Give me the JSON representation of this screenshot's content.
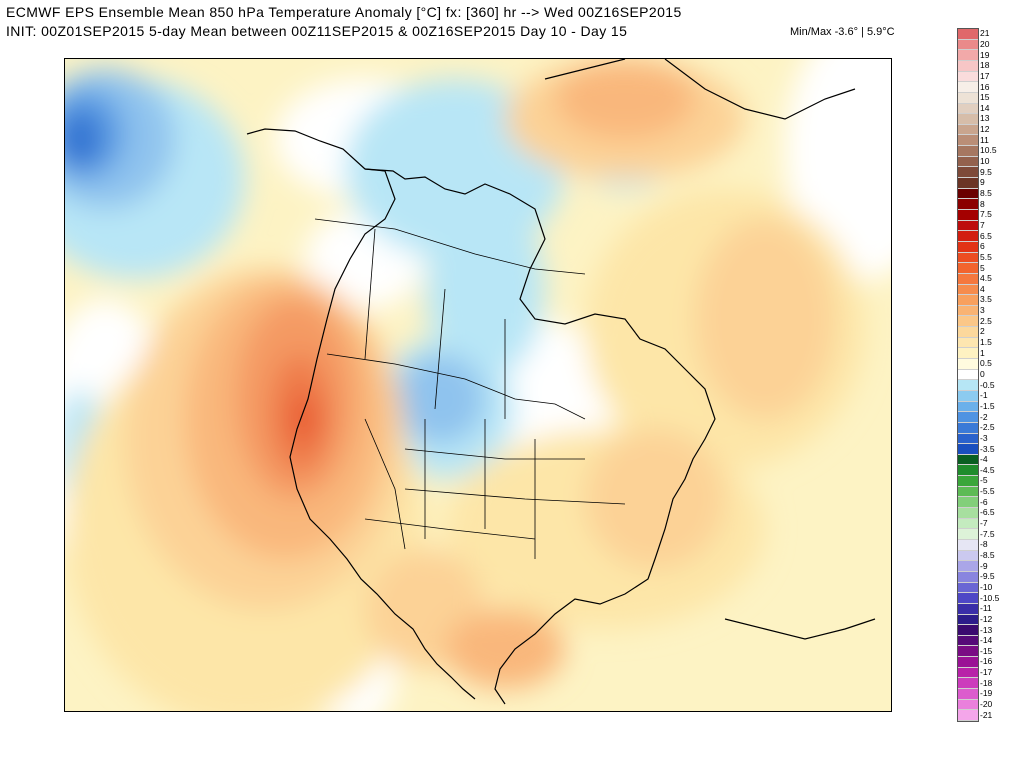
{
  "header": {
    "line1": "ECMWF EPS Ensemble Mean 850 hPa Temperature Anomaly [°C] fx: [360] hr --> Wed 00Z16SEP2015",
    "line2": "INIT: 00Z01SEP2015 5-day Mean between 00Z11SEP2015 & 00Z16SEP2015    Day 10 - Day 15",
    "minmax": "Min/Max -3.6° |  5.9°C"
  },
  "map": {
    "region": "North America",
    "land_outline_color": "#000000",
    "lake_color": "#6e6e6e",
    "anomaly_colors": {
      "neg_3": "#2f6fd0",
      "neg_2": "#5a9be3",
      "neg_1": "#8fc3ee",
      "neg_05": "#b8e6f6",
      "neutral": "#ffffff",
      "pos_05": "#fdf3c4",
      "pos_1": "#fde6a8",
      "pos_15": "#fcd296",
      "pos_2": "#f9b77c",
      "pos_3": "#f49a63",
      "pos_4": "#ef7a48",
      "pos_5": "#e85a33"
    }
  },
  "colorbar": {
    "labels": [
      "21",
      "20",
      "19",
      "18",
      "17",
      "16",
      "15",
      "14",
      "13",
      "12",
      "11",
      "10.5",
      "10",
      "9.5",
      "9",
      "8.5",
      "8",
      "7.5",
      "7",
      "6.5",
      "6",
      "5.5",
      "5",
      "4.5",
      "4",
      "3.5",
      "3",
      "2.5",
      "2",
      "1.5",
      "1",
      "0.5",
      "0",
      "-0.5",
      "-1",
      "-1.5",
      "-2",
      "-2.5",
      "-3",
      "-3.5",
      "-4",
      "-4.5",
      "-5",
      "-5.5",
      "-6",
      "-6.5",
      "-7",
      "-7.5",
      "-8",
      "-8.5",
      "-9",
      "-9.5",
      "-10",
      "-10.5",
      "-11",
      "-12",
      "-13",
      "-14",
      "-15",
      "-16",
      "-17",
      "-18",
      "-19",
      "-20",
      "-21"
    ],
    "colors": [
      "#e0686a",
      "#ea8a8a",
      "#f2a9a9",
      "#f7c6c6",
      "#fadcdc",
      "#f7efe8",
      "#ede2d6",
      "#e1cfc0",
      "#d6bda9",
      "#c9a58e",
      "#ba8e77",
      "#a67761",
      "#93614d",
      "#7e4a39",
      "#6b3425",
      "#6a0000",
      "#8b0000",
      "#a40000",
      "#bd0d0d",
      "#d21e10",
      "#e23316",
      "#ec4d22",
      "#f2642e",
      "#f5783e",
      "#f68c4d",
      "#f8a05e",
      "#f9b373",
      "#fbc788",
      "#fcd89c",
      "#fde6b0",
      "#fef2c2",
      "#fffbdf",
      "#ffffff",
      "#b6e6f5",
      "#8ccbf0",
      "#6bb0ea",
      "#4f93e2",
      "#3b7ad7",
      "#2a62cc",
      "#1a4fbf",
      "#0a5f22",
      "#1f8c2c",
      "#3aa63a",
      "#5dbb55",
      "#82cf7a",
      "#a7df9f",
      "#c4ebbf",
      "#ddf2d8",
      "#e6e6f4",
      "#cbc9ef",
      "#aaa6e8",
      "#8985df",
      "#6a66d4",
      "#4e47c6",
      "#3a2ea8",
      "#2c1c8a",
      "#3a0a6f",
      "#560a78",
      "#7a0c84",
      "#9a1295",
      "#b822a8",
      "#cc3cbc",
      "#dc5ccd",
      "#ea80dc",
      "#f4a6ea"
    ]
  }
}
